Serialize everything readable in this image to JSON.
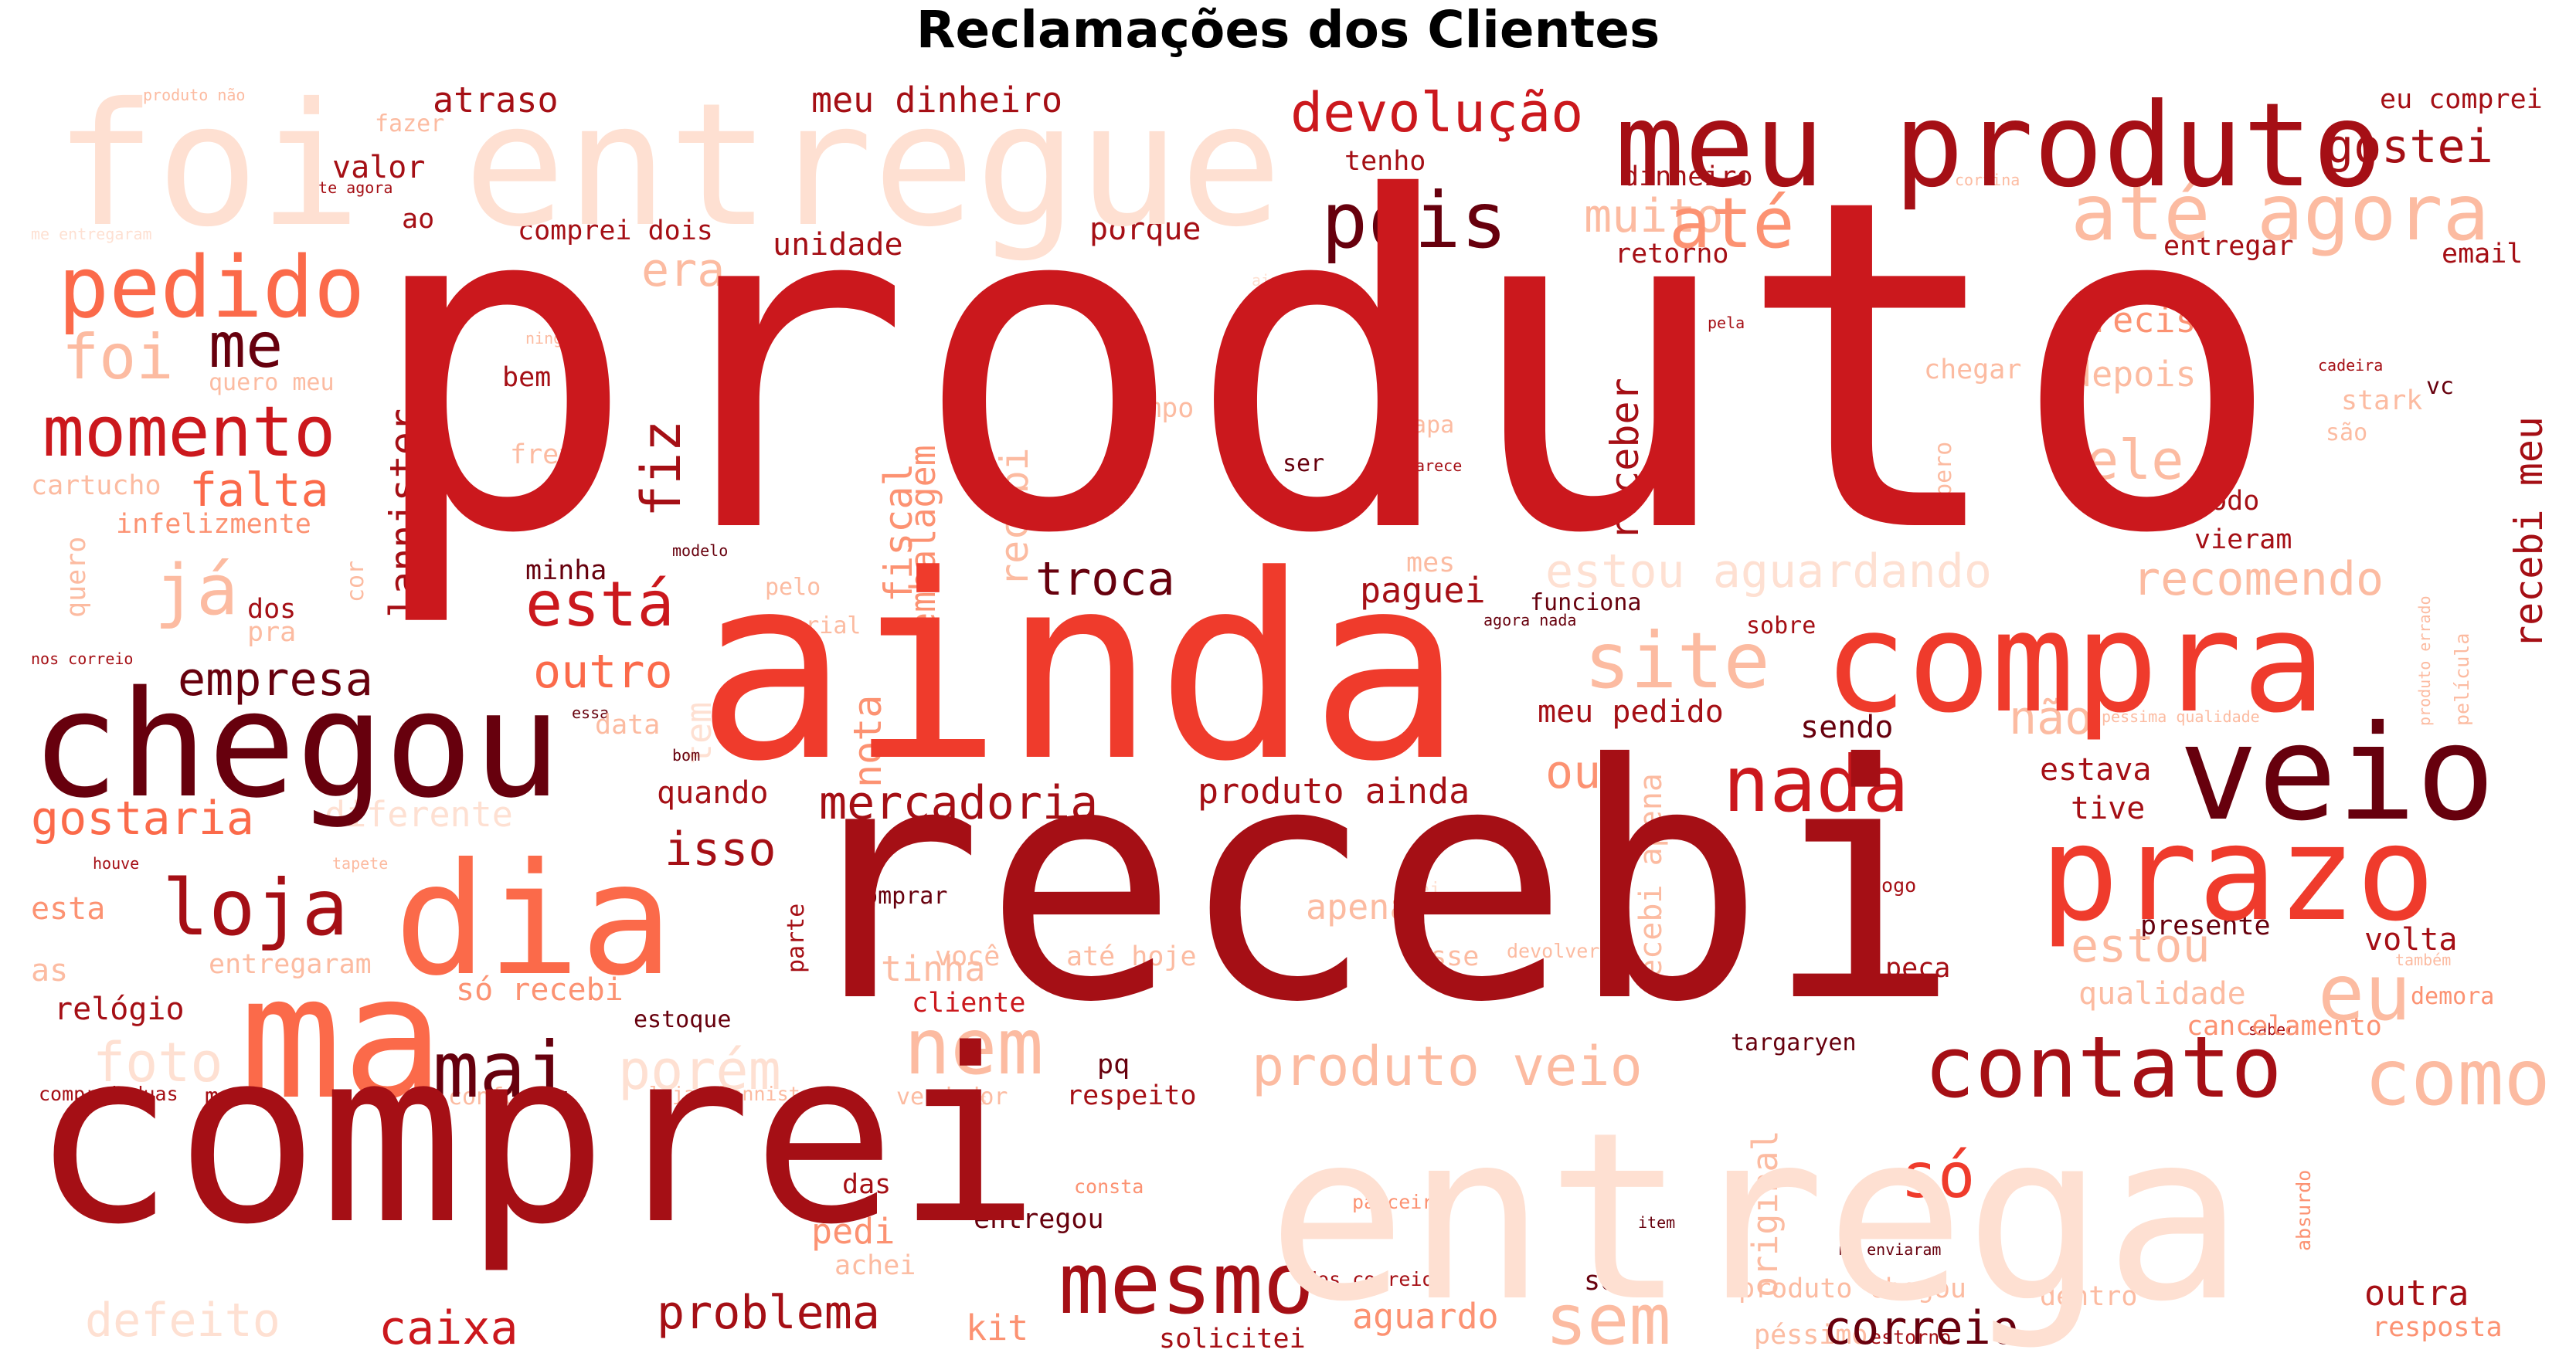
{
  "title": "Reclamações dos Clientes",
  "palette": {
    "darkest": "#67000d",
    "dark": "#a50f15",
    "red": "#cb181d",
    "mid": "#ef3b2c",
    "light": "#fb6a4a",
    "salmon": "#fc9272",
    "pale": "#fcbba1",
    "palest": "#fee0d2"
  },
  "words": [
    {
      "text": "produto",
      "tone": "red"
    },
    {
      "text": "recebi",
      "tone": "dark"
    },
    {
      "text": "comprei",
      "tone": "dark"
    },
    {
      "text": "ainda",
      "tone": "mid"
    },
    {
      "text": "entrega",
      "tone": "palest"
    },
    {
      "text": "foi entregue",
      "tone": "palest"
    },
    {
      "text": "chegou",
      "tone": "darkest"
    },
    {
      "text": "meu produto",
      "tone": "dark"
    },
    {
      "text": "compra",
      "tone": "mid"
    },
    {
      "text": "veio",
      "tone": "darkest"
    },
    {
      "text": "prazo",
      "tone": "mid"
    },
    {
      "text": "dia",
      "tone": "light"
    },
    {
      "text": "ma",
      "tone": "light"
    },
    {
      "text": "contato",
      "tone": "dark"
    },
    {
      "text": "mesmo",
      "tone": "dark"
    },
    {
      "text": "pedido",
      "tone": "light"
    },
    {
      "text": "loja",
      "tone": "dark"
    },
    {
      "text": "mai",
      "tone": "darkest"
    },
    {
      "text": "nada",
      "tone": "red"
    },
    {
      "text": "até agora",
      "tone": "pale"
    },
    {
      "text": "momento",
      "tone": "red"
    },
    {
      "text": "pois",
      "tone": "darkest"
    },
    {
      "text": "site",
      "tone": "pale"
    },
    {
      "text": "eu",
      "tone": "pale"
    },
    {
      "text": "como",
      "tone": "pale"
    },
    {
      "text": "nem",
      "tone": "pale"
    },
    {
      "text": "devolução",
      "tone": "red"
    },
    {
      "text": "até",
      "tone": "salmon"
    },
    {
      "text": "gostei",
      "tone": "dark"
    },
    {
      "text": "está",
      "tone": "red"
    },
    {
      "text": "produto veio",
      "tone": "pale"
    },
    {
      "text": "mercadoria",
      "tone": "dark"
    },
    {
      "text": "troca",
      "tone": "darkest"
    },
    {
      "text": "só",
      "tone": "mid"
    },
    {
      "text": "gostaria",
      "tone": "light"
    },
    {
      "text": "correio",
      "tone": "darkest"
    },
    {
      "text": "empresa",
      "tone": "darkest"
    },
    {
      "text": "caixa",
      "tone": "red"
    },
    {
      "text": "problema",
      "tone": "dark"
    },
    {
      "text": "sem",
      "tone": "pale"
    },
    {
      "text": "fiz",
      "tone": "dark"
    },
    {
      "text": "me",
      "tone": "darkest"
    },
    {
      "text": "foi",
      "tone": "pale"
    },
    {
      "text": "já",
      "tone": "pale"
    },
    {
      "text": "falta",
      "tone": "light"
    },
    {
      "text": "isso",
      "tone": "dark"
    },
    {
      "text": "outro",
      "tone": "light"
    },
    {
      "text": "estou aguardando",
      "tone": "palest"
    },
    {
      "text": "recomendo",
      "tone": "pale"
    },
    {
      "text": "ele",
      "tone": "pale"
    },
    {
      "text": "estou",
      "tone": "pale"
    },
    {
      "text": "porém",
      "tone": "palest"
    },
    {
      "text": "foto",
      "tone": "palest"
    },
    {
      "text": "defeito",
      "tone": "palest"
    },
    {
      "text": "era",
      "tone": "pale"
    },
    {
      "text": "muito",
      "tone": "pale"
    },
    {
      "text": "ou",
      "tone": "salmon"
    },
    {
      "text": "não",
      "tone": "pale"
    },
    {
      "text": "nota",
      "tone": "salmon"
    },
    {
      "text": "fiscal",
      "tone": "salmon"
    },
    {
      "text": "recebi",
      "tone": "pale"
    },
    {
      "text": "recebi meu",
      "tone": "dark"
    },
    {
      "text": "receber",
      "tone": "dark"
    },
    {
      "text": "lannister",
      "tone": "dark"
    },
    {
      "text": "atraso",
      "tone": "dark"
    },
    {
      "text": "meu dinheiro",
      "tone": "dark"
    },
    {
      "text": "valor",
      "tone": "dark"
    },
    {
      "text": "unidade",
      "tone": "dark"
    },
    {
      "text": "porque",
      "tone": "dark"
    },
    {
      "text": "comprei dois",
      "tone": "dark"
    },
    {
      "text": "retorno",
      "tone": "dark"
    },
    {
      "text": "dinheiro",
      "tone": "dark"
    },
    {
      "text": "tenho",
      "tone": "dark"
    },
    {
      "text": "ao",
      "tone": "dark"
    },
    {
      "text": "eu comprei",
      "tone": "dark"
    },
    {
      "text": "entregar",
      "tone": "dark"
    },
    {
      "text": "email",
      "tone": "dark"
    },
    {
      "text": "preciso",
      "tone": "salmon"
    },
    {
      "text": "depois",
      "tone": "pale"
    },
    {
      "text": "chegar",
      "tone": "pale"
    },
    {
      "text": "vc",
      "tone": "darkest"
    },
    {
      "text": "são",
      "tone": "pale"
    },
    {
      "text": "todo",
      "tone": "dark"
    },
    {
      "text": "vieram",
      "tone": "dark"
    },
    {
      "text": "paguei",
      "tone": "dark"
    },
    {
      "text": "funciona",
      "tone": "darkest"
    },
    {
      "text": "meu pedido",
      "tone": "dark"
    },
    {
      "text": "sendo",
      "tone": "darkest"
    },
    {
      "text": "estava",
      "tone": "dark"
    },
    {
      "text": "tive",
      "tone": "dark"
    },
    {
      "text": "produto ainda",
      "tone": "dark"
    },
    {
      "text": "quando",
      "tone": "dark"
    },
    {
      "text": "apena",
      "tone": "pale"
    },
    {
      "text": "recebi apena",
      "tone": "pale"
    },
    {
      "text": "volta",
      "tone": "dark"
    },
    {
      "text": "presente",
      "tone": "darkest"
    },
    {
      "text": "qualidade",
      "tone": "pale"
    },
    {
      "text": "cancelamento",
      "tone": "salmon"
    },
    {
      "text": "demora",
      "tone": "salmon"
    },
    {
      "text": "peça",
      "tone": "dark"
    },
    {
      "text": "targaryen",
      "tone": "darkest"
    },
    {
      "text": "só recebi",
      "tone": "salmon"
    },
    {
      "text": "estoque",
      "tone": "darkest"
    },
    {
      "text": "cliente",
      "tone": "red"
    },
    {
      "text": "comprar",
      "tone": "darkest"
    },
    {
      "text": "relógio",
      "tone": "dark"
    },
    {
      "text": "as",
      "tone": "pale"
    },
    {
      "text": "esta",
      "tone": "salmon"
    },
    {
      "text": "entregaram",
      "tone": "pale"
    },
    {
      "text": "respeito",
      "tone": "dark"
    },
    {
      "text": "conforme",
      "tone": "pale"
    },
    {
      "text": "vendedor",
      "tone": "pale"
    },
    {
      "text": "mail",
      "tone": "dark"
    },
    {
      "text": "comprei duas",
      "tone": "dark"
    },
    {
      "text": "lojas lannister",
      "tone": "pale"
    },
    {
      "text": "original",
      "tone": "pale"
    },
    {
      "text": "entregou",
      "tone": "darkest"
    },
    {
      "text": "pedi",
      "tone": "salmon"
    },
    {
      "text": "das",
      "tone": "dark"
    },
    {
      "text": "achei",
      "tone": "pale"
    },
    {
      "text": "kit",
      "tone": "salmon"
    },
    {
      "text": "solicitei",
      "tone": "dark"
    },
    {
      "text": "aguardo",
      "tone": "salmon"
    },
    {
      "text": "so",
      "tone": "darkest"
    },
    {
      "text": "produto chegou",
      "tone": "pale"
    },
    {
      "text": "péssimo",
      "tone": "pale"
    },
    {
      "text": "dentro",
      "tone": "pale"
    },
    {
      "text": "outra",
      "tone": "dark"
    },
    {
      "text": "resposta",
      "tone": "salmon"
    },
    {
      "text": "até hoje",
      "tone": "pale"
    },
    {
      "text": "você",
      "tone": "pale"
    },
    {
      "text": "tinha",
      "tone": "pale"
    },
    {
      "text": "pq",
      "tone": "darkest"
    },
    {
      "text": "parte",
      "tone": "dark"
    },
    {
      "text": "esse",
      "tone": "pale"
    },
    {
      "text": "devolver",
      "tone": "pale"
    },
    {
      "text": "jogo",
      "tone": "dark"
    },
    {
      "text": "sei",
      "tone": "palest"
    },
    {
      "text": "embalagem",
      "tone": "salmon"
    },
    {
      "text": "q",
      "tone": "dark"
    },
    {
      "text": "tem",
      "tone": "palest"
    },
    {
      "text": "bem",
      "tone": "dark"
    },
    {
      "text": "frete",
      "tone": "pale"
    },
    {
      "text": "tempo",
      "tone": "pale"
    },
    {
      "text": "capa",
      "tone": "pale"
    },
    {
      "text": "ser",
      "tone": "darkest"
    },
    {
      "text": "parece",
      "tone": "dark"
    },
    {
      "text": "quero meu",
      "tone": "pale"
    },
    {
      "text": "cartucho",
      "tone": "pale"
    },
    {
      "text": "infelizmente",
      "tone": "salmon"
    },
    {
      "text": "quero",
      "tone": "pale"
    },
    {
      "text": "cor",
      "tone": "pale"
    },
    {
      "text": "minha",
      "tone": "darkest"
    },
    {
      "text": "dos",
      "tone": "dark"
    },
    {
      "text": "pelo",
      "tone": "pale"
    },
    {
      "text": "pra",
      "tone": "pale"
    },
    {
      "text": "material",
      "tone": "pale"
    },
    {
      "text": "sobre",
      "tone": "dark"
    },
    {
      "text": "mes",
      "tone": "pale"
    },
    {
      "text": "modelo",
      "tone": "darkest"
    },
    {
      "text": "diferente",
      "tone": "palest"
    },
    {
      "text": "data",
      "tone": "pale"
    },
    {
      "text": "bom",
      "tone": "darkest"
    },
    {
      "text": "essa",
      "tone": "darkest"
    },
    {
      "text": "houve",
      "tone": "dark"
    },
    {
      "text": "tapete",
      "tone": "pale"
    },
    {
      "text": "nos correio",
      "tone": "dark"
    },
    {
      "text": "produto não",
      "tone": "pale"
    },
    {
      "text": "fazer",
      "tone": "pale"
    },
    {
      "text": "ate agora",
      "tone": "dark"
    },
    {
      "text": "me entregaram",
      "tone": "palest"
    },
    {
      "text": "cortina",
      "tone": "pale"
    },
    {
      "text": "ainda não",
      "tone": "palest"
    },
    {
      "text": "pela",
      "tone": "dark"
    },
    {
      "text": "cadeira",
      "tone": "dark"
    },
    {
      "text": "stark",
      "tone": "pale"
    },
    {
      "text": "ninguém",
      "tone": "pale"
    },
    {
      "text": "espero",
      "tone": "pale"
    },
    {
      "text": "agora nada",
      "tone": "darkest"
    },
    {
      "text": "péssima qualidade",
      "tone": "pale"
    },
    {
      "text": "película",
      "tone": "pale"
    },
    {
      "text": "produto errado",
      "tone": "pale"
    },
    {
      "text": "também",
      "tone": "pale"
    },
    {
      "text": "consta",
      "tone": "salmon"
    },
    {
      "text": "parceiro",
      "tone": "salmon"
    },
    {
      "text": "item",
      "tone": "darkest"
    },
    {
      "text": "me enviaram",
      "tone": "darkest"
    },
    {
      "text": "dos correios",
      "tone": "dark"
    },
    {
      "text": "absurdo",
      "tone": "salmon"
    },
    {
      "text": "estorno",
      "tone": "dark"
    },
    {
      "text": "saber",
      "tone": "dark"
    },
    {
      "text": "apos",
      "tone": "palest"
    }
  ]
}
